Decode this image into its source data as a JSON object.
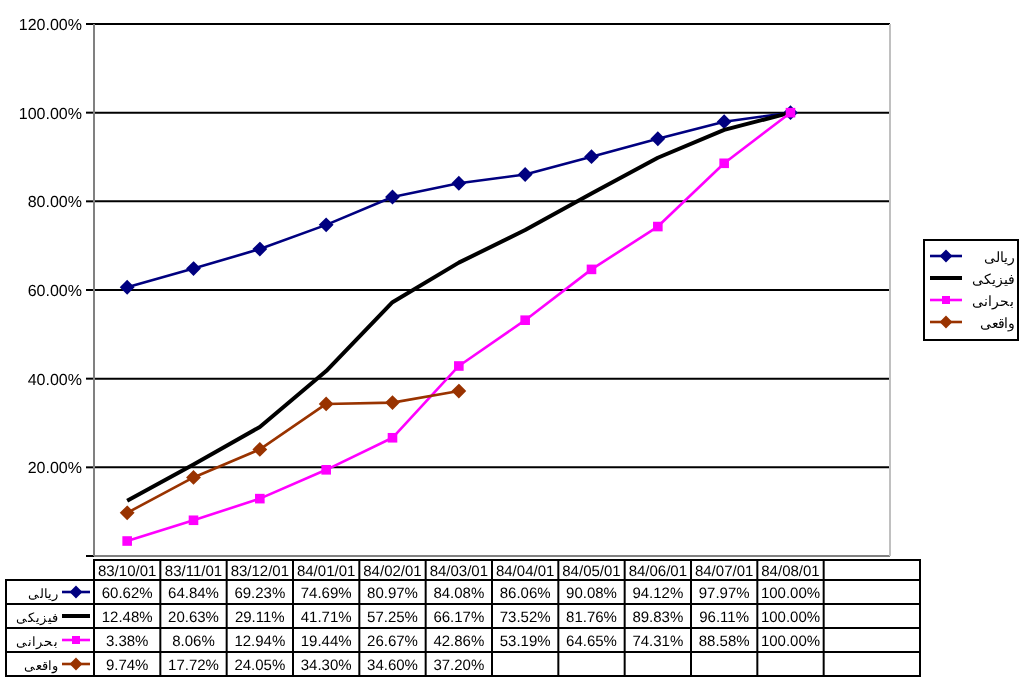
{
  "chart_data": {
    "type": "line",
    "categories": [
      "83/10/01",
      "83/11/01",
      "83/12/01",
      "84/01/01",
      "84/02/01",
      "84/03/01",
      "84/04/01",
      "84/05/01",
      "84/06/01",
      "84/07/01",
      "84/08/01",
      null
    ],
    "ylim": [
      0,
      120
    ],
    "yticks": [
      {
        "value": 0,
        "label": null
      },
      {
        "value": 20,
        "label": "20.00%"
      },
      {
        "value": 40,
        "label": "40.00%"
      },
      {
        "value": 60,
        "label": "60.00%"
      },
      {
        "value": 80,
        "label": "80.00%"
      },
      {
        "value": 100,
        "label": "100.00%"
      },
      {
        "value": 120,
        "label": "120.00%"
      }
    ],
    "grid": "y",
    "legend": "right",
    "tick_labels": "y",
    "series": [
      {
        "name": "ریالی",
        "color": "#000080",
        "marker": "diamond",
        "values": [
          60.62,
          64.84,
          69.23,
          74.69,
          80.97,
          84.08,
          86.06,
          90.08,
          94.12,
          97.97,
          100,
          null
        ],
        "value_labels": [
          "60.62%",
          "64.84%",
          "69.23%",
          "74.69%",
          "80.97%",
          "84.08%",
          "86.06%",
          "90.08%",
          "94.12%",
          "97.97%",
          "100.00%",
          null
        ]
      },
      {
        "name": "فیزیکی",
        "color": "#000000",
        "marker": "none",
        "values": [
          12.48,
          20.63,
          29.11,
          41.71,
          57.25,
          66.17,
          73.52,
          81.76,
          89.83,
          96.11,
          100,
          null
        ],
        "value_labels": [
          "12.48%",
          "20.63%",
          "29.11%",
          "41.71%",
          "57.25%",
          "66.17%",
          "73.52%",
          "81.76%",
          "89.83%",
          "96.11%",
          "100.00%",
          null
        ]
      },
      {
        "name": "بحرانی",
        "color": "#ff00ff",
        "marker": "square",
        "values": [
          3.38,
          8.06,
          12.94,
          19.44,
          26.67,
          42.86,
          53.19,
          64.65,
          74.31,
          88.58,
          100,
          null
        ],
        "value_labels": [
          "3.38%",
          "8.06%",
          "12.94%",
          "19.44%",
          "26.67%",
          "42.86%",
          "53.19%",
          "64.65%",
          "74.31%",
          "88.58%",
          "100.00%",
          null
        ]
      },
      {
        "name": "واقعی",
        "color": "#993300",
        "marker": "diamond",
        "values": [
          9.74,
          17.72,
          24.05,
          34.3,
          34.6,
          37.2,
          null,
          null,
          null,
          null,
          null,
          null
        ],
        "value_labels": [
          "9.74%",
          "17.72%",
          "24.05%",
          "34.30%",
          "34.60%",
          "37.20%",
          null,
          null,
          null,
          null,
          null,
          null
        ]
      }
    ]
  }
}
